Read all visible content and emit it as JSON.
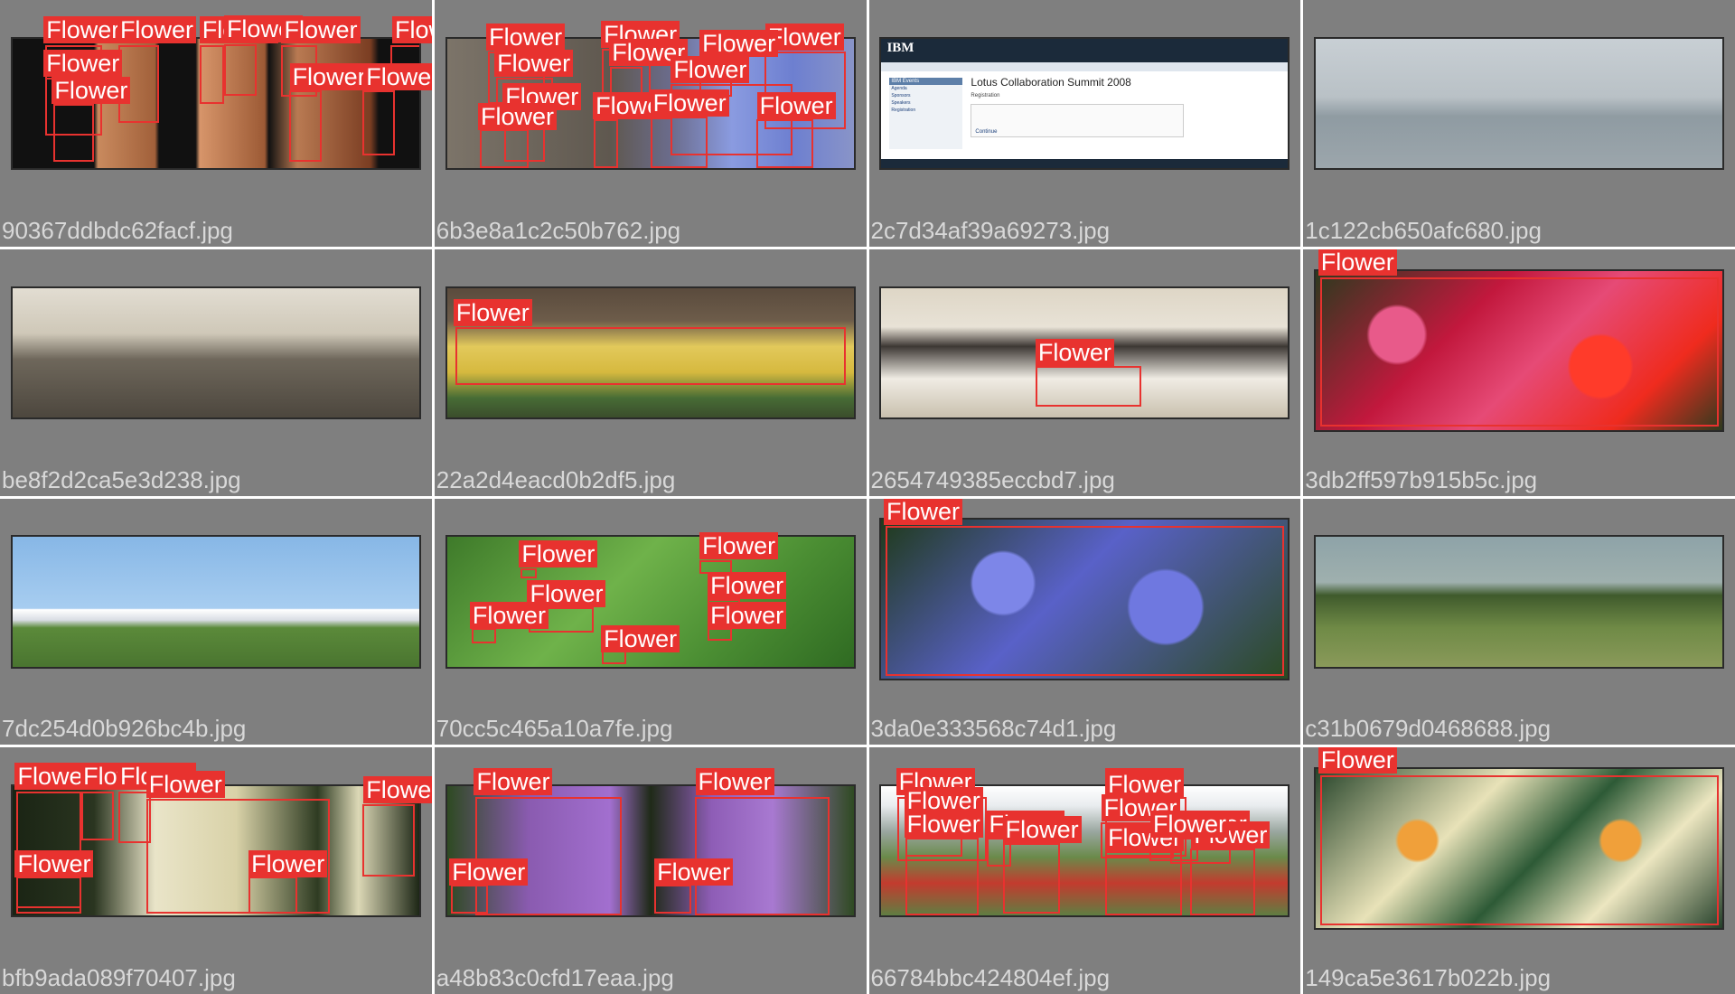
{
  "page": {
    "background": "#ffffff",
    "cell_background": "#7f7f7f",
    "box_color": "#e8322f"
  },
  "cells": [
    {
      "filename": "90367ddbdc62facf.jpg",
      "scene": "tattoo",
      "tall": false,
      "detections": [
        {
          "label": "Flower"
        },
        {
          "label": "Flower"
        },
        {
          "label": "Flower"
        },
        {
          "label": "Flower"
        },
        {
          "label": "Flower"
        },
        {
          "label": "Flower"
        },
        {
          "label": "Flower"
        },
        {
          "label": "Flower"
        },
        {
          "label": "Flower"
        },
        {
          "label": "Flower"
        }
      ]
    },
    {
      "filename": "6b3e8a1c2c50b762.jpg",
      "scene": "chicory",
      "tall": false,
      "detections": [
        {
          "label": "Flower"
        },
        {
          "label": "Flower"
        },
        {
          "label": "Flower"
        },
        {
          "label": "Flower"
        },
        {
          "label": "Flower"
        },
        {
          "label": "Flower"
        },
        {
          "label": "Flower"
        },
        {
          "label": "Flower"
        },
        {
          "label": "Flower"
        },
        {
          "label": "Flower"
        },
        {
          "label": "Flower"
        },
        {
          "label": "Flower"
        }
      ]
    },
    {
      "filename": "2c7d34af39a69273.jpg",
      "scene": "ibm",
      "tall": false,
      "inner_page": {
        "logo": "IBM",
        "title": "Lotus Collaboration Summit 2008",
        "subtitle": "Registration",
        "side_header": "IBM Events",
        "side_items": [
          "Agenda",
          "Sponsors",
          "Speakers",
          "Registration"
        ],
        "button": "Continue"
      },
      "detections": []
    },
    {
      "filename": "1c122cb650afc680.jpg",
      "scene": "ship",
      "tall": false,
      "detections": []
    },
    {
      "filename": "be8f2d2ca5e3d238.jpg",
      "scene": "stadium",
      "tall": false,
      "detections": []
    },
    {
      "filename": "22a2d4eacd0b2df5.jpg",
      "scene": "daffodil",
      "tall": false,
      "detections": [
        {
          "label": "Flower"
        }
      ]
    },
    {
      "filename": "2654749385eccbd7.jpg",
      "scene": "summit",
      "tall": false,
      "detections": [
        {
          "label": "Flower"
        }
      ]
    },
    {
      "filename": "3db2ff597b915b5c.jpg",
      "scene": "impatiens",
      "tall": true,
      "detections": [
        {
          "label": "Flower"
        }
      ]
    },
    {
      "filename": "7dc254d0b926bc4b.jpg",
      "scene": "plane",
      "tall": false,
      "detections": []
    },
    {
      "filename": "70cc5c465a10a7fe.jpg",
      "scene": "leaves",
      "tall": false,
      "detections": [
        {
          "label": "Flower"
        },
        {
          "label": "Flower"
        },
        {
          "label": "Flower"
        },
        {
          "label": "Flower"
        },
        {
          "label": "Flower"
        },
        {
          "label": "Flower"
        },
        {
          "label": "Flower"
        }
      ]
    },
    {
      "filename": "3da0e333568c74d1.jpg",
      "scene": "aster",
      "tall": true,
      "detections": [
        {
          "label": "Flower"
        }
      ]
    },
    {
      "filename": "c31b0679d0468688.jpg",
      "scene": "dc3",
      "tall": false,
      "detections": []
    },
    {
      "filename": "bfb9ada089f70407.jpg",
      "scene": "orchid",
      "tall": false,
      "detections": [
        {
          "label": "Flower"
        },
        {
          "label": "Flower"
        },
        {
          "label": "Flower"
        },
        {
          "label": "Flower"
        },
        {
          "label": "Flower"
        },
        {
          "label": "Flower"
        },
        {
          "label": "Flower"
        }
      ]
    },
    {
      "filename": "a48b83c0cfd17eaa.jpg",
      "scene": "allium",
      "tall": false,
      "detections": [
        {
          "label": "Flower"
        },
        {
          "label": "Flower"
        },
        {
          "label": "Flower"
        },
        {
          "label": "Flower"
        }
      ]
    },
    {
      "filename": "66784bbc424804ef.jpg",
      "scene": "poppies",
      "tall": false,
      "detections": [
        {
          "label": "Flower"
        },
        {
          "label": "Flower"
        },
        {
          "label": "Flower"
        },
        {
          "label": "Flower"
        },
        {
          "label": "Flower"
        },
        {
          "label": "Flower"
        },
        {
          "label": "Flower"
        },
        {
          "label": "Flower"
        },
        {
          "label": "Flower"
        },
        {
          "label": "Flower"
        },
        {
          "label": "Flower"
        },
        {
          "label": "Flower"
        }
      ]
    },
    {
      "filename": "149ca5e3617b022b.jpg",
      "scene": "kalanchoe",
      "tall": true,
      "detections": [
        {
          "label": "Flower"
        }
      ]
    }
  ]
}
